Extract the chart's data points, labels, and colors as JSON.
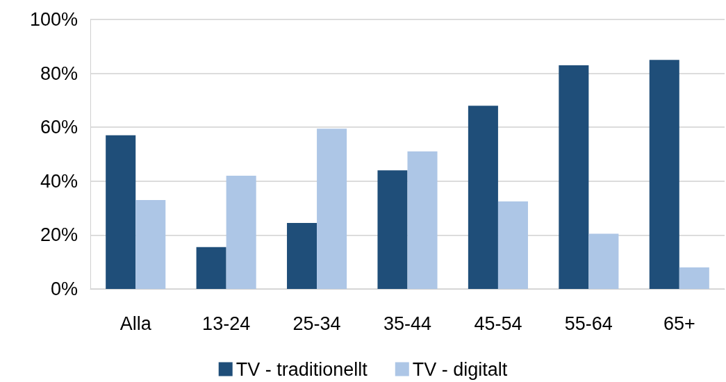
{
  "chart_data": {
    "type": "bar",
    "categories": [
      "Alla",
      "13-24",
      "25-34",
      "35-44",
      "45-54",
      "55-64",
      "65+"
    ],
    "series": [
      {
        "name": "TV - traditionellt",
        "color": "#1f4e79",
        "values": [
          57,
          15.5,
          24.5,
          44,
          68,
          83,
          85
        ]
      },
      {
        "name": "TV - digitalt",
        "color": "#adc6e6",
        "values": [
          33,
          42,
          59.5,
          51,
          32.5,
          20.5,
          8
        ]
      }
    ],
    "ylim": [
      0,
      100
    ],
    "yticks": [
      {
        "value": 0,
        "label": "0%"
      },
      {
        "value": 20,
        "label": "20%"
      },
      {
        "value": 40,
        "label": "40%"
      },
      {
        "value": 60,
        "label": "60%"
      },
      {
        "value": 80,
        "label": "80%"
      },
      {
        "value": 100,
        "label": "100%"
      }
    ],
    "grid": "y",
    "legend": "bottom"
  }
}
